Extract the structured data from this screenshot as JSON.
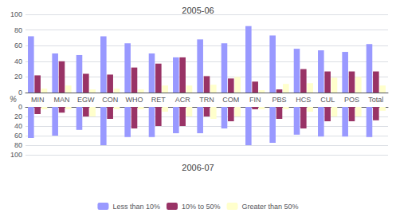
{
  "chart_data": [
    {
      "type": "bar",
      "title": "2005-06",
      "ylabel": "%",
      "categories": [
        "MIN",
        "MAN",
        "EGW",
        "CON",
        "WHO",
        "RET",
        "ACR",
        "TRN",
        "COM",
        "FIN",
        "PBS",
        "HCS",
        "CUL",
        "POS",
        "Total"
      ],
      "series": [
        {
          "name": "Less than 10%",
          "color": "#9999FF",
          "values": [
            72,
            50,
            48,
            72,
            63,
            50,
            45,
            68,
            63,
            85,
            73,
            56,
            54,
            52,
            62
          ]
        },
        {
          "name": "10% to 50%",
          "color": "#993366",
          "values": [
            22,
            40,
            24,
            23,
            32,
            37,
            45,
            21,
            18,
            14,
            4,
            30,
            27,
            27,
            27
          ]
        },
        {
          "name": "Greater than 50%",
          "color": "#FFFFCC",
          "values": [
            5,
            9,
            4,
            5,
            4,
            9,
            9,
            10,
            20,
            3,
            11,
            12,
            19,
            20,
            9
          ]
        }
      ],
      "ylim": [
        0,
        100
      ],
      "yticks": [
        0,
        20,
        40,
        60,
        80,
        100
      ],
      "grid": true
    },
    {
      "type": "bar",
      "title": "2006-07",
      "categories": [
        "MIN",
        "MAN",
        "EGW",
        "CON",
        "WHO",
        "RET",
        "ACR",
        "TRN",
        "COM",
        "FIN",
        "PBS",
        "HCS",
        "CUL",
        "POS",
        "Total"
      ],
      "series": [
        {
          "name": "Less than 10%",
          "color": "#9999FF",
          "values": [
            65,
            60,
            48,
            80,
            63,
            63,
            55,
            55,
            45,
            80,
            75,
            58,
            62,
            62,
            63
          ]
        },
        {
          "name": "10% to 50%",
          "color": "#993366",
          "values": [
            15,
            12,
            20,
            25,
            45,
            40,
            40,
            20,
            30,
            5,
            25,
            45,
            30,
            30,
            28
          ]
        },
        {
          "name": "Greater than 50%",
          "color": "#FFFFCC",
          "values": [
            5,
            5,
            20,
            5,
            5,
            10,
            20,
            25,
            20,
            5,
            5,
            10,
            20,
            20,
            8
          ]
        }
      ],
      "ylim": [
        0,
        100
      ],
      "yticks": [
        0,
        20,
        40,
        60,
        80,
        100
      ],
      "grid": true,
      "tick_labels": "y",
      "legend": "bottom"
    }
  ]
}
